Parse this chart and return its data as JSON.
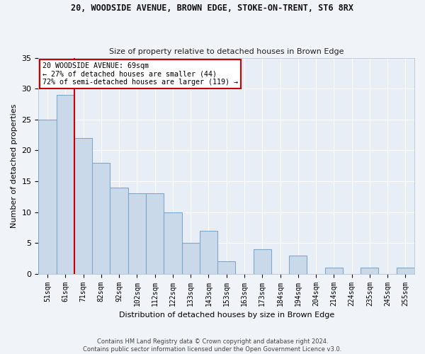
{
  "title1": "20, WOODSIDE AVENUE, BROWN EDGE, STOKE-ON-TRENT, ST6 8RX",
  "title2": "Size of property relative to detached houses in Brown Edge",
  "xlabel": "Distribution of detached houses by size in Brown Edge",
  "ylabel": "Number of detached properties",
  "categories": [
    "51sqm",
    "61sqm",
    "71sqm",
    "82sqm",
    "92sqm",
    "102sqm",
    "112sqm",
    "122sqm",
    "133sqm",
    "143sqm",
    "153sqm",
    "163sqm",
    "173sqm",
    "184sqm",
    "194sqm",
    "204sqm",
    "214sqm",
    "224sqm",
    "235sqm",
    "245sqm",
    "255sqm"
  ],
  "values": [
    25,
    29,
    22,
    18,
    14,
    13,
    13,
    10,
    5,
    7,
    2,
    0,
    4,
    0,
    3,
    0,
    1,
    0,
    1,
    0,
    1
  ],
  "bar_color": "#c9d9ea",
  "bar_edge_color": "#7fa8c8",
  "property_line_label": "20 WOODSIDE AVENUE: 69sqm",
  "annotation_line1": "← 27% of detached houses are smaller (44)",
  "annotation_line2": "72% of semi-detached houses are larger (119) →",
  "annotation_box_color": "#ffffff",
  "annotation_box_edge_color": "#cc0000",
  "property_line_color": "#cc0000",
  "ylim": [
    0,
    35
  ],
  "bg_color": "#e8eef5",
  "grid_color": "#ffffff",
  "fig_bg_color": "#f0f4f8",
  "footer1": "Contains HM Land Registry data © Crown copyright and database right 2024.",
  "footer2": "Contains public sector information licensed under the Open Government Licence v3.0."
}
